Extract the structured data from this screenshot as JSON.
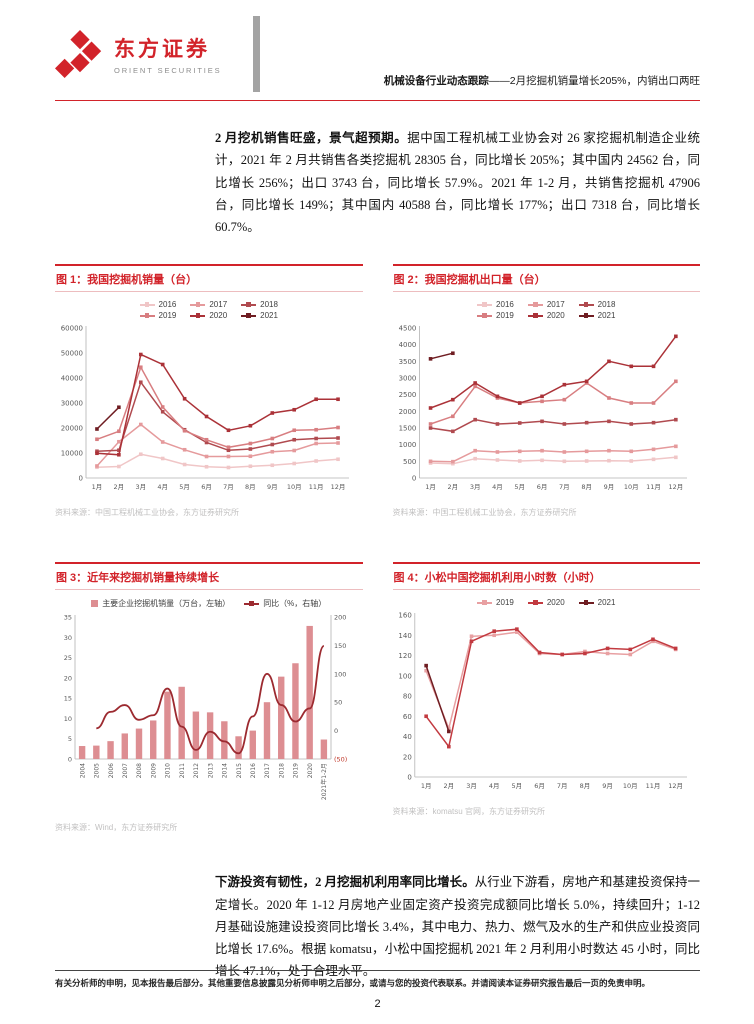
{
  "page": {
    "accent_red": "#d2232a",
    "divider_gray": "#a3a3a3"
  },
  "header": {
    "logo_icon": "orient-securities-diamond-logo",
    "brand_cn": "东方证券",
    "brand_en": "ORIENT SECURITIES",
    "report_series": "机械设备行业动态跟踪",
    "report_subtitle": "——2月挖掘机销量增长205%，内销出口两旺"
  },
  "paragraph1": {
    "lead": "2 月挖机销售旺盛，景气超预期。",
    "body": "据中国工程机械工业协会对 26 家挖掘机制造企业统计，2021 年 2 月共销售各类挖掘机 28305 台，同比增长 205%；其中国内 24562 台，同比增长 256%；出口 3743 台，同比增长 57.9%。2021 年 1-2 月，共销售挖掘机 47906 台，同比增长 149%；其中国内 40588 台，同比增长 177%；出口 7318 台，同比增长 60.7%。"
  },
  "paragraph2": {
    "lead": "下游投资有韧性，2 月挖掘机利用率同比增长。",
    "body": "从行业下游看，房地产和基建投资保持一定增长。2020 年 1-12 月房地产业固定资产投资完成额同比增长 5.0%，持续回升；1-12 月基础设施建设投资同比增长 3.4%，其中电力、热力、燃气及水的生产和供应业投资同比增长 17.6%。根据 komatsu，小松中国挖掘机 2021 年 2 月利用小时数达 45 小时，同比增长 47.1%，处于合理水平。"
  },
  "footer": {
    "disclaimer": "有关分析师的申明，见本报告最后部分。其他重要信息披露见分析师申明之后部分，或请与您的投资代表联系。并请阅读本证券研究报告最后一页的免责申明。",
    "page_number": "2"
  },
  "chart_data": [
    {
      "type": "line",
      "title": "图 1：我国挖掘机销量（台）",
      "source": "资料来源：中国工程机械工业协会，东方证券研究所",
      "legend_position": "top",
      "grid": false,
      "ylim": [
        0,
        60000
      ],
      "ystep": 10000,
      "categories": [
        "1月",
        "2月",
        "3月",
        "4月",
        "5月",
        "6月",
        "7月",
        "8月",
        "9月",
        "10月",
        "11月",
        "12月"
      ],
      "series": [
        {
          "name": "2016",
          "color": "#f0c6c7",
          "values": [
            4300,
            4600,
            9500,
            7800,
            5400,
            4500,
            4200,
            4700,
            5100,
            5800,
            6800,
            7500
          ]
        },
        {
          "name": "2017",
          "color": "#e59a9c",
          "values": [
            4800,
            14500,
            21400,
            14400,
            11300,
            8600,
            8600,
            8700,
            10500,
            11000,
            13800,
            14000
          ]
        },
        {
          "name": "2018",
          "color": "#b04a4f",
          "values": [
            10700,
            11100,
            38300,
            26500,
            19300,
            14200,
            11100,
            11600,
            13400,
            15300,
            15800,
            16000
          ]
        },
        {
          "name": "2019",
          "color": "#d87e81",
          "values": [
            15500,
            18700,
            44300,
            28400,
            18900,
            15300,
            12300,
            13800,
            15800,
            19100,
            19300,
            20200
          ]
        },
        {
          "name": "2020",
          "color": "#ab3238",
          "values": [
            9900,
            9300,
            49400,
            45400,
            31700,
            24600,
            19100,
            20900,
            26000,
            27300,
            31500,
            31500
          ]
        },
        {
          "name": "2021",
          "color": "#6f1d22",
          "values": [
            19600,
            28300
          ]
        }
      ]
    },
    {
      "type": "line",
      "title": "图 2：我国挖掘机出口量（台）",
      "source": "资料来源：中国工程机械工业协会，东方证券研究所",
      "legend_position": "top",
      "grid": false,
      "ylim": [
        0,
        4500
      ],
      "ystep": 500,
      "categories": [
        "1月",
        "2月",
        "3月",
        "4月",
        "5月",
        "6月",
        "7月",
        "8月",
        "9月",
        "10月",
        "11月",
        "12月"
      ],
      "series": [
        {
          "name": "2016",
          "color": "#f0c6c7",
          "values": [
            450,
            430,
            580,
            540,
            510,
            530,
            500,
            510,
            520,
            510,
            560,
            620
          ]
        },
        {
          "name": "2017",
          "color": "#e59a9c",
          "values": [
            500,
            490,
            820,
            780,
            800,
            820,
            780,
            800,
            820,
            800,
            860,
            950
          ]
        },
        {
          "name": "2018",
          "color": "#b04a4f",
          "values": [
            1500,
            1400,
            1750,
            1620,
            1650,
            1700,
            1620,
            1660,
            1700,
            1620,
            1660,
            1750
          ]
        },
        {
          "name": "2019",
          "color": "#d87e81",
          "values": [
            1620,
            1850,
            2750,
            2400,
            2250,
            2300,
            2350,
            2850,
            2400,
            2250,
            2250,
            2900
          ]
        },
        {
          "name": "2020",
          "color": "#ab3238",
          "values": [
            2100,
            2350,
            2850,
            2450,
            2250,
            2450,
            2800,
            2900,
            3500,
            3350,
            3350,
            4250
          ]
        },
        {
          "name": "2021",
          "color": "#6f1d22",
          "values": [
            3575,
            3743
          ]
        }
      ]
    },
    {
      "type": "bar+line",
      "title": "图 3：近年来挖掘机销量持续增长",
      "source": "资料来源：Wind，东方证券研究所",
      "legend_position": "top",
      "grid": false,
      "ylim_left": [
        0,
        35
      ],
      "ystep_left": 5,
      "ylim_right": [
        -50,
        200
      ],
      "ystep_right": 50,
      "categories": [
        "2004",
        "2005",
        "2006",
        "2007",
        "2008",
        "2009",
        "2010",
        "2011",
        "2012",
        "2013",
        "2014",
        "2015",
        "2016",
        "2017",
        "2018",
        "2019",
        "2020",
        "2021年1-2月"
      ],
      "bar_series": {
        "name": "主要企业挖掘机销量（万台，左轴）",
        "color": "#dd8e92",
        "values": [
          3.2,
          3.3,
          4.4,
          6.3,
          7.5,
          9.5,
          16.6,
          17.8,
          11.7,
          11.5,
          9.3,
          5.6,
          7.0,
          14.0,
          20.3,
          23.6,
          32.8,
          4.8
        ]
      },
      "line_series": {
        "name": "同比（%，右轴）",
        "color": "#9c2a30",
        "values": [
          null,
          4,
          33,
          45,
          19,
          27,
          74,
          7,
          -34,
          -2,
          -19,
          -40,
          25,
          100,
          45,
          16,
          39,
          149
        ]
      }
    },
    {
      "type": "line",
      "title": "图 4：小松中国挖掘机利用小时数（小时）",
      "source": "资料来源：komatsu 官网，东方证券研究所",
      "legend_position": "top",
      "grid": false,
      "ylim": [
        0,
        160
      ],
      "ystep": 20,
      "categories": [
        "1月",
        "2月",
        "3月",
        "4月",
        "5月",
        "6月",
        "7月",
        "8月",
        "9月",
        "10月",
        "11月",
        "12月"
      ],
      "series": [
        {
          "name": "2019",
          "color": "#e8a0a2",
          "values": [
            105,
            48,
            139,
            140,
            143,
            122,
            121,
            124,
            122,
            121,
            134,
            126
          ]
        },
        {
          "name": "2020",
          "color": "#c23a40",
          "values": [
            60,
            30,
            134,
            144,
            146,
            123,
            121,
            122,
            127,
            126,
            136,
            127
          ]
        },
        {
          "name": "2021",
          "color": "#6f1d22",
          "values": [
            110,
            45
          ]
        }
      ]
    }
  ]
}
